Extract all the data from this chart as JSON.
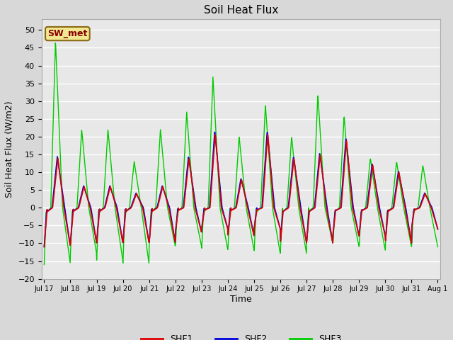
{
  "title": "Soil Heat Flux",
  "xlabel": "Time",
  "ylabel": "Soil Heat Flux (W/m2)",
  "ylim": [
    -20,
    53
  ],
  "yticks": [
    -20,
    -15,
    -10,
    -5,
    0,
    5,
    10,
    15,
    20,
    25,
    30,
    35,
    40,
    45,
    50
  ],
  "x_tick_labels": [
    "Jul 17",
    "Jul 18",
    "Jul 19",
    "Jul 20",
    "Jul 21",
    "Jul 22",
    "Jul 23",
    "Jul 24",
    "Jul 25",
    "Jul 26",
    "Jul 27",
    "Jul 28",
    "Jul 29",
    "Jul 30",
    "Jul 31",
    "Aug 1"
  ],
  "legend_label": "SW_met",
  "legend_bg": "#f0e890",
  "legend_border": "#8b6914",
  "series_colors": {
    "SHF1": "#dd0000",
    "SHF2": "#0000dd",
    "SHF3": "#00cc00"
  },
  "background_color": "#d8d8d8",
  "plot_bg": "#e8e8e8",
  "grid_color": "#ffffff",
  "n_days": 15,
  "samples_per_day": 96,
  "shf12_peaks": [
    14,
    6,
    6,
    4,
    6,
    14,
    21,
    8,
    21,
    14,
    15,
    19,
    12,
    10,
    4
  ],
  "shf12_troughs": [
    -11,
    -10,
    -10,
    -10,
    -10,
    -7,
    -6,
    -8,
    -6,
    -10,
    -10,
    -8,
    -8,
    -10,
    -6
  ],
  "shf3_peaks": [
    47,
    22,
    22,
    13,
    22,
    27,
    37,
    20,
    29,
    20,
    32,
    26,
    14,
    13,
    12
  ],
  "shf3_troughs": [
    -16,
    -13,
    -15,
    -16,
    -11,
    -11,
    -12,
    -12,
    -13,
    -13,
    -10,
    -11,
    -12,
    -11,
    -11
  ]
}
